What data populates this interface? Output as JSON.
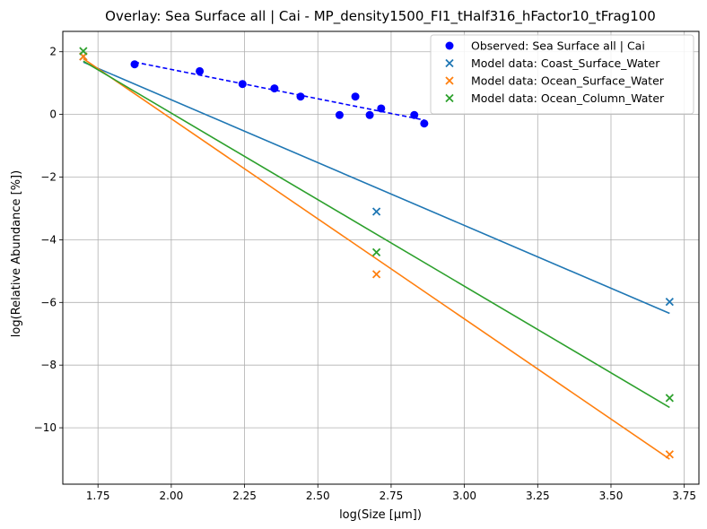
{
  "chart_data": {
    "type": "scatter",
    "title": "Overlay: Sea Surface all | Cai - MP_density1500_FI1_tHalf316_hFactor10_tFrag100",
    "xlabel": "log(Size [μm])",
    "ylabel": "log(Relative Abundance [%])",
    "xlim": [
      1.63,
      3.8
    ],
    "ylim": [
      -11.8,
      2.65
    ],
    "xticks": [
      1.75,
      2.0,
      2.25,
      2.5,
      2.75,
      3.0,
      3.25,
      3.5,
      3.75
    ],
    "xtick_labels": [
      "1.75",
      "2.00",
      "2.25",
      "2.50",
      "2.75",
      "3.00",
      "3.25",
      "3.50",
      "3.75"
    ],
    "yticks": [
      2,
      0,
      -2,
      -4,
      -6,
      -8,
      -10
    ],
    "ytick_labels": [
      "2",
      "0",
      "−2",
      "−4",
      "−6",
      "−8",
      "−10"
    ],
    "grid": true,
    "legend_position": "top-right",
    "series": [
      {
        "name": "Observed: Sea Surface all | Cai",
        "kind": "observed",
        "color": "#0000ff",
        "marker": "circle",
        "x": [
          1.875,
          2.097,
          2.243,
          2.352,
          2.441,
          2.574,
          2.628,
          2.677,
          2.716,
          2.829,
          2.863
        ],
        "y": [
          1.6,
          1.38,
          0.97,
          0.83,
          0.57,
          -0.02,
          0.57,
          -0.02,
          0.19,
          -0.02,
          -0.29
        ],
        "fit": {
          "x": [
            1.875,
            2.863
          ],
          "y": [
            1.67,
            -0.18
          ],
          "style": "dashed"
        }
      },
      {
        "name": "Model data: Coast_Surface_Water",
        "kind": "model",
        "color": "#1f77b4",
        "marker": "x",
        "x": [
          1.7,
          2.7,
          3.7
        ],
        "y": [
          1.85,
          -3.1,
          -5.98
        ],
        "fit": {
          "x": [
            1.7,
            3.7
          ],
          "y": [
            1.67,
            -6.35
          ],
          "style": "solid"
        }
      },
      {
        "name": "Model data: Ocean_Surface_Water",
        "kind": "model",
        "color": "#ff7f0e",
        "marker": "x",
        "x": [
          1.7,
          2.7,
          3.7
        ],
        "y": [
          1.85,
          -5.1,
          -10.85
        ],
        "fit": {
          "x": [
            1.7,
            3.7
          ],
          "y": [
            1.78,
            -11.0
          ],
          "style": "solid"
        }
      },
      {
        "name": "Model data: Ocean_Column_Water",
        "kind": "model",
        "color": "#2ca02c",
        "marker": "x",
        "x": [
          1.7,
          2.7,
          3.7
        ],
        "y": [
          2.02,
          -4.4,
          -9.05
        ],
        "fit": {
          "x": [
            1.7,
            3.7
          ],
          "y": [
            1.7,
            -9.35
          ],
          "style": "solid"
        }
      }
    ]
  }
}
